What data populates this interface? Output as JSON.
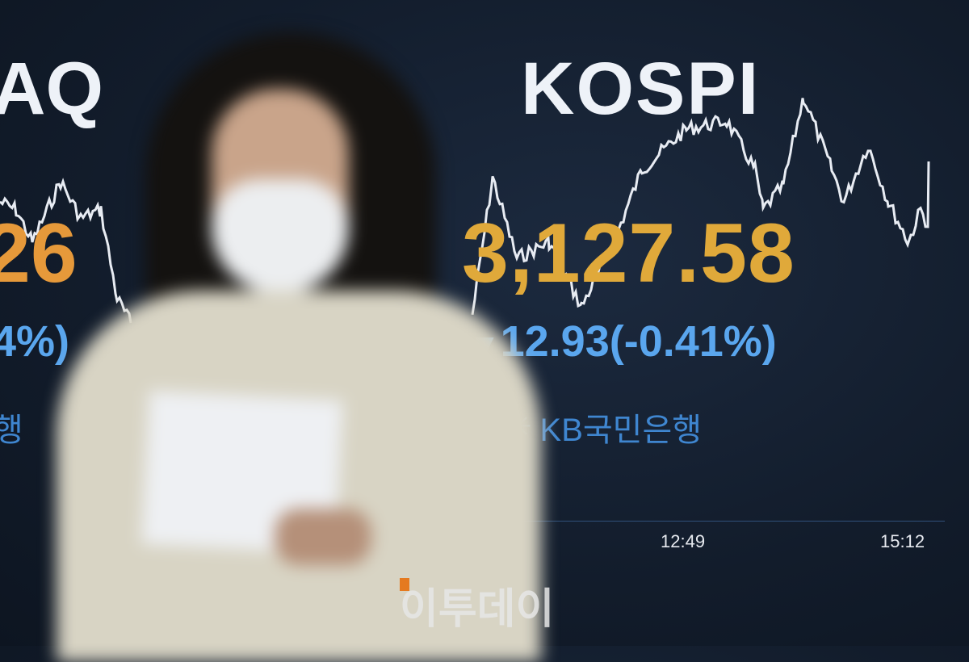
{
  "board": {
    "left_index_title_partial": "AQ",
    "left_index_value_partial": "26",
    "left_index_change_partial": "4%)",
    "left_sponsor_partial": "행",
    "kospi_title": "KOSPI",
    "kospi_value": "3,127.58",
    "kospi_change": "12.93(-0.41%)",
    "change_direction_icon": "triangle-down-icon",
    "sponsor": "KB국민은행",
    "time_ticks": [
      "12:49",
      "15:12"
    ],
    "colors": {
      "value": "#e0a93a",
      "change": "#5aa6ee",
      "sponsor": "#3f86d0",
      "background": "#121c2b"
    }
  },
  "watermark": "이투데이"
}
